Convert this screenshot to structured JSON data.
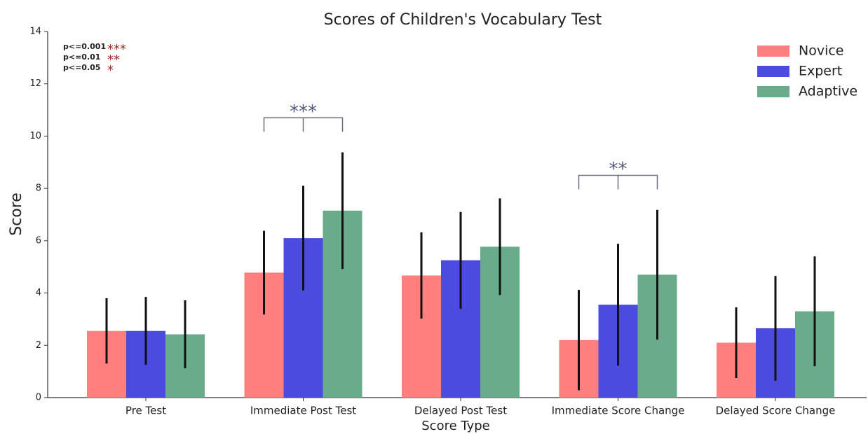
{
  "chart_data": {
    "type": "bar",
    "title": "Scores of Children's Vocabulary Test",
    "x_label": "Score Type",
    "y_label": "Score",
    "categories": [
      "Pre Test",
      "Immediate Post Test",
      "Delayed Post Test",
      "Immediate Score Change",
      "Delayed Score Change"
    ],
    "series": [
      {
        "name": "Novice",
        "color": "#ff7f7f",
        "values": [
          2.55,
          4.78,
          4.67,
          2.2,
          2.1
        ],
        "errors": [
          1.25,
          1.6,
          1.65,
          1.92,
          1.35
        ]
      },
      {
        "name": "Expert",
        "color": "#4b4be0",
        "values": [
          2.55,
          6.1,
          5.25,
          3.55,
          2.65
        ],
        "errors": [
          1.3,
          2.0,
          1.85,
          2.33,
          2.0
        ]
      },
      {
        "name": "Adaptive",
        "color": "#6aab8c",
        "values": [
          2.42,
          7.15,
          5.77,
          4.7,
          3.3
        ],
        "errors": [
          1.3,
          2.23,
          1.85,
          2.48,
          2.1
        ]
      }
    ],
    "ylim": [
      0,
      14
    ],
    "yticks": [
      0,
      2,
      4,
      6,
      8,
      10,
      12,
      14
    ],
    "legend": "upper right",
    "significance": [
      {
        "text": "***"
      },
      {
        "text": "**"
      }
    ],
    "key": [
      {
        "threshold": "p<=0.001",
        "stars": "***"
      },
      {
        "threshold": "p<=0.01",
        "stars": "**"
      },
      {
        "threshold": "p<=0.05",
        "stars": "*"
      }
    ]
  }
}
